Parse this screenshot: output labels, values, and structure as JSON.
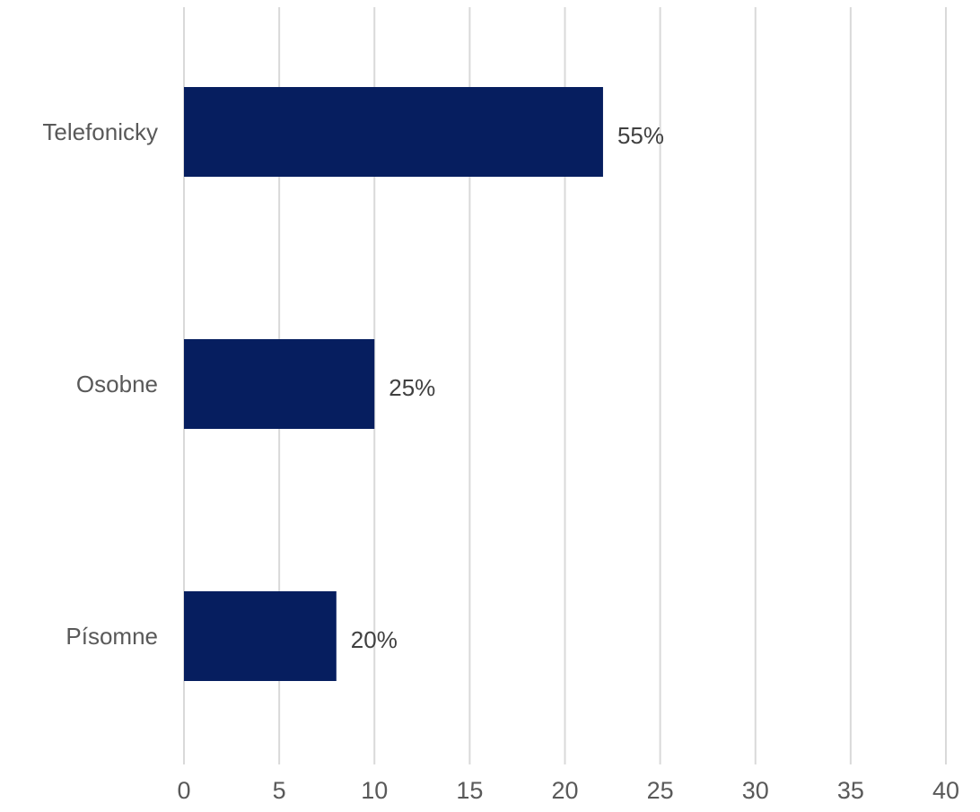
{
  "chart_data": {
    "type": "bar",
    "orientation": "horizontal",
    "categories": [
      "Telefonicky",
      "Osobne",
      "Písomne"
    ],
    "series": [
      {
        "values": [
          22,
          10,
          8
        ],
        "data_labels": [
          "55%",
          "25%",
          "20%"
        ],
        "color": "#061e5f"
      }
    ],
    "x_ticks": [
      "0",
      "5",
      "10",
      "15",
      "20",
      "25",
      "30",
      "35",
      "40"
    ],
    "xlim": [
      0,
      40
    ],
    "grid": "vertical",
    "legend": "none"
  }
}
